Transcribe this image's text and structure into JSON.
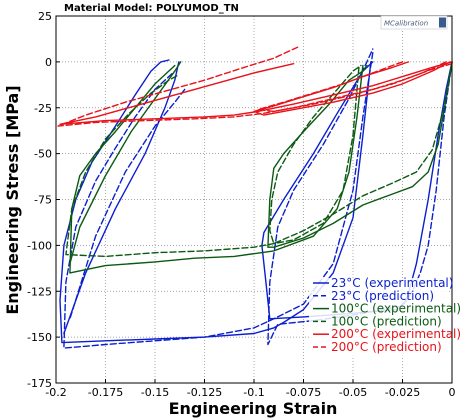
{
  "chart_data": {
    "type": "line",
    "title": "Material Model: POLYUMOD_TN",
    "xlabel": "Engineering Strain",
    "ylabel": "Engineering Stress [MPa]",
    "xlim": [
      -0.2,
      0
    ],
    "ylim": [
      -175,
      25
    ],
    "xticks": [
      -0.2,
      -0.175,
      -0.15,
      -0.125,
      -0.1,
      -0.075,
      -0.05,
      -0.025,
      0
    ],
    "xtick_labels": [
      "-0.2",
      "-0.175",
      "-0.15",
      "-0.125",
      "-0.1",
      "-0.075",
      "-0.05",
      "-0.025",
      "0"
    ],
    "yticks": [
      -175,
      -150,
      -125,
      -100,
      -75,
      -50,
      -25,
      0,
      25
    ],
    "ytick_labels": [
      "-175",
      "-150",
      "-125",
      "-100",
      "-75",
      "-50",
      "-25",
      "0",
      "25"
    ],
    "grid": true,
    "legend_position": "bottom-right",
    "logo_text": "MCalibration",
    "series": [
      {
        "name": "23°C (experimental)",
        "color": "#0b1fd0",
        "dash": "solid",
        "segments": [
          [
            [
              0,
              0
            ],
            [
              -0.003,
              -15
            ],
            [
              -0.007,
              -40
            ],
            [
              -0.012,
              -75
            ],
            [
              -0.018,
              -110
            ],
            [
              -0.023,
              -130
            ],
            [
              -0.028,
              -135
            ],
            [
              -0.05,
              -137
            ],
            [
              -0.075,
              -139
            ],
            [
              -0.092,
              -140
            ],
            [
              -0.094,
              -120
            ],
            [
              -0.096,
              -100
            ],
            [
              -0.095,
              -93
            ],
            [
              -0.085,
              -75
            ],
            [
              -0.07,
              -50
            ],
            [
              -0.058,
              -28
            ],
            [
              -0.045,
              -5
            ],
            [
              -0.04,
              0
            ]
          ],
          [
            [
              -0.041,
              0
            ],
            [
              -0.045,
              -40
            ],
            [
              -0.05,
              -85
            ],
            [
              -0.06,
              -115
            ],
            [
              -0.075,
              -135
            ],
            [
              -0.085,
              -142
            ],
            [
              -0.09,
              -145
            ],
            [
              -0.1,
              -148
            ],
            [
              -0.125,
              -150
            ],
            [
              -0.15,
              -151
            ],
            [
              -0.175,
              -152
            ],
            [
              -0.197,
              -153
            ],
            [
              -0.198,
              -130
            ],
            [
              -0.196,
              -100
            ],
            [
              -0.19,
              -75
            ],
            [
              -0.182,
              -55
            ],
            [
              -0.17,
              -35
            ],
            [
              -0.16,
              -18
            ],
            [
              -0.152,
              -5
            ],
            [
              -0.147,
              0
            ],
            [
              -0.143,
              1
            ]
          ],
          [
            [
              -0.138,
              0
            ],
            [
              -0.14,
              -10
            ],
            [
              -0.145,
              -25
            ],
            [
              -0.155,
              -50
            ],
            [
              -0.17,
              -80
            ],
            [
              -0.185,
              -115
            ],
            [
              -0.196,
              -148
            ]
          ]
        ]
      },
      {
        "name": "23°C (prediction)",
        "color": "#0b1fd0",
        "dash": "dashed",
        "segments": [
          [
            [
              0,
              0
            ],
            [
              -0.004,
              -30
            ],
            [
              -0.008,
              -70
            ],
            [
              -0.012,
              -100
            ],
            [
              -0.016,
              -115
            ],
            [
              -0.02,
              -125
            ],
            [
              -0.025,
              -133
            ],
            [
              -0.05,
              -138
            ],
            [
              -0.07,
              -141
            ],
            [
              -0.088,
              -143
            ],
            [
              -0.093,
              -154
            ],
            [
              -0.092,
              -120
            ],
            [
              -0.088,
              -90
            ],
            [
              -0.08,
              -70
            ],
            [
              -0.065,
              -45
            ],
            [
              -0.052,
              -20
            ],
            [
              -0.043,
              0
            ],
            [
              -0.04,
              7
            ]
          ],
          [
            [
              -0.04,
              5
            ],
            [
              -0.045,
              -30
            ],
            [
              -0.05,
              -70
            ],
            [
              -0.06,
              -110
            ],
            [
              -0.075,
              -132
            ],
            [
              -0.09,
              -140
            ],
            [
              -0.1,
              -145
            ],
            [
              -0.125,
              -150
            ],
            [
              -0.15,
              -152
            ],
            [
              -0.175,
              -154
            ],
            [
              -0.196,
              -156
            ],
            [
              -0.195,
              -120
            ],
            [
              -0.19,
              -90
            ],
            [
              -0.18,
              -65
            ],
            [
              -0.17,
              -47
            ],
            [
              -0.16,
              -30
            ],
            [
              -0.15,
              -15
            ],
            [
              -0.14,
              -5
            ]
          ],
          [
            [
              -0.135,
              -15
            ],
            [
              -0.14,
              -22
            ],
            [
              -0.15,
              -35
            ],
            [
              -0.165,
              -60
            ],
            [
              -0.18,
              -95
            ],
            [
              -0.193,
              -140
            ]
          ]
        ]
      },
      {
        "name": "100°C (experimental)",
        "color": "#0b5a12",
        "dash": "solid",
        "segments": [
          [
            [
              0,
              0
            ],
            [
              -0.003,
              -20
            ],
            [
              -0.007,
              -45
            ],
            [
              -0.012,
              -60
            ],
            [
              -0.02,
              -68
            ],
            [
              -0.03,
              -72
            ],
            [
              -0.045,
              -78
            ],
            [
              -0.06,
              -88
            ],
            [
              -0.075,
              -96
            ],
            [
              -0.09,
              -101
            ],
            [
              -0.093,
              -101
            ],
            [
              -0.092,
              -75
            ],
            [
              -0.09,
              -58
            ],
            [
              -0.085,
              -50
            ],
            [
              -0.075,
              -38
            ],
            [
              -0.062,
              -23
            ],
            [
              -0.052,
              -10
            ],
            [
              -0.045,
              -5
            ],
            [
              -0.043,
              -2
            ]
          ],
          [
            [
              -0.045,
              -2
            ],
            [
              -0.048,
              -30
            ],
            [
              -0.052,
              -60
            ],
            [
              -0.058,
              -80
            ],
            [
              -0.07,
              -95
            ],
            [
              -0.09,
              -103
            ],
            [
              -0.11,
              -106
            ],
            [
              -0.13,
              -107
            ],
            [
              -0.15,
              -109
            ],
            [
              -0.175,
              -111
            ],
            [
              -0.193,
              -115
            ],
            [
              -0.192,
              -80
            ],
            [
              -0.188,
              -62
            ],
            [
              -0.18,
              -50
            ],
            [
              -0.17,
              -38
            ],
            [
              -0.16,
              -25
            ],
            [
              -0.15,
              -12
            ],
            [
              -0.14,
              -2
            ]
          ],
          [
            [
              -0.137,
              0
            ],
            [
              -0.14,
              -5
            ],
            [
              -0.15,
              -20
            ],
            [
              -0.162,
              -38
            ],
            [
              -0.175,
              -62
            ],
            [
              -0.188,
              -90
            ],
            [
              -0.193,
              -110
            ]
          ]
        ]
      },
      {
        "name": "100°C (prediction)",
        "color": "#0b5a12",
        "dash": "dashed",
        "segments": [
          [
            [
              0,
              0
            ],
            [
              -0.004,
              -25
            ],
            [
              -0.01,
              -48
            ],
            [
              -0.018,
              -60
            ],
            [
              -0.03,
              -66
            ],
            [
              -0.045,
              -73
            ],
            [
              -0.06,
              -83
            ],
            [
              -0.075,
              -92
            ],
            [
              -0.09,
              -99
            ],
            [
              -0.092,
              -92
            ],
            [
              -0.091,
              -75
            ],
            [
              -0.088,
              -60
            ],
            [
              -0.08,
              -45
            ],
            [
              -0.07,
              -30
            ],
            [
              -0.058,
              -15
            ],
            [
              -0.05,
              -5
            ],
            [
              -0.046,
              -2
            ]
          ],
          [
            [
              -0.047,
              -3
            ],
            [
              -0.05,
              -40
            ],
            [
              -0.055,
              -70
            ],
            [
              -0.065,
              -88
            ],
            [
              -0.08,
              -97
            ],
            [
              -0.1,
              -101
            ],
            [
              -0.125,
              -103
            ],
            [
              -0.15,
              -104
            ],
            [
              -0.175,
              -106
            ],
            [
              -0.195,
              -105
            ],
            [
              -0.192,
              -80
            ],
            [
              -0.185,
              -60
            ],
            [
              -0.175,
              -42
            ],
            [
              -0.163,
              -28
            ],
            [
              -0.152,
              -17
            ],
            [
              -0.143,
              -10
            ],
            [
              -0.138,
              -7
            ]
          ]
        ]
      },
      {
        "name": "200°C (experimental)",
        "color": "#e8121a",
        "dash": "solid",
        "segments": [
          [
            [
              0,
              0
            ],
            [
              -0.01,
              -3
            ],
            [
              -0.025,
              -8
            ],
            [
              -0.04,
              -13
            ],
            [
              -0.06,
              -18
            ],
            [
              -0.08,
              -23
            ],
            [
              -0.098,
              -27
            ],
            [
              -0.11,
              -29
            ],
            [
              -0.125,
              -30
            ],
            [
              -0.15,
              -31
            ],
            [
              -0.175,
              -32
            ],
            [
              -0.198,
              -34
            ],
            [
              -0.18,
              -30
            ],
            [
              -0.16,
              -24
            ],
            [
              -0.14,
              -18
            ],
            [
              -0.12,
              -12
            ],
            [
              -0.1,
              -6
            ],
            [
              -0.08,
              -1
            ]
          ],
          [
            [
              -0.001,
              0
            ],
            [
              -0.01,
              -5
            ],
            [
              -0.025,
              -12
            ],
            [
              -0.04,
              -17
            ],
            [
              -0.06,
              -22
            ],
            [
              -0.08,
              -26
            ],
            [
              -0.095,
              -29
            ],
            [
              -0.1,
              -27
            ],
            [
              -0.09,
              -24
            ],
            [
              -0.075,
              -19
            ],
            [
              -0.06,
              -14
            ],
            [
              -0.045,
              -8
            ],
            [
              -0.03,
              -3
            ],
            [
              -0.022,
              0
            ]
          ]
        ]
      },
      {
        "name": "200°C (prediction)",
        "color": "#e8121a",
        "dash": "dashed",
        "segments": [
          [
            [
              0,
              -1
            ],
            [
              -0.01,
              -4
            ],
            [
              -0.025,
              -10
            ],
            [
              -0.04,
              -15
            ],
            [
              -0.06,
              -20
            ],
            [
              -0.08,
              -25
            ],
            [
              -0.095,
              -28
            ],
            [
              -0.11,
              -30
            ],
            [
              -0.13,
              -31
            ],
            [
              -0.155,
              -32
            ],
            [
              -0.18,
              -33
            ],
            [
              -0.199,
              -35
            ],
            [
              -0.185,
              -29
            ],
            [
              -0.165,
              -22
            ],
            [
              -0.145,
              -16
            ],
            [
              -0.125,
              -10
            ],
            [
              -0.105,
              -3
            ],
            [
              -0.09,
              2
            ],
            [
              -0.078,
              8
            ]
          ],
          [
            [
              -0.003,
              0
            ],
            [
              -0.015,
              -6
            ],
            [
              -0.03,
              -12
            ],
            [
              -0.05,
              -18
            ],
            [
              -0.07,
              -23
            ],
            [
              -0.09,
              -27
            ],
            [
              -0.098,
              -26
            ],
            [
              -0.085,
              -22
            ],
            [
              -0.07,
              -17
            ],
            [
              -0.055,
              -12
            ],
            [
              -0.04,
              -6
            ],
            [
              -0.03,
              -2
            ],
            [
              -0.025,
              0
            ]
          ]
        ]
      }
    ]
  }
}
